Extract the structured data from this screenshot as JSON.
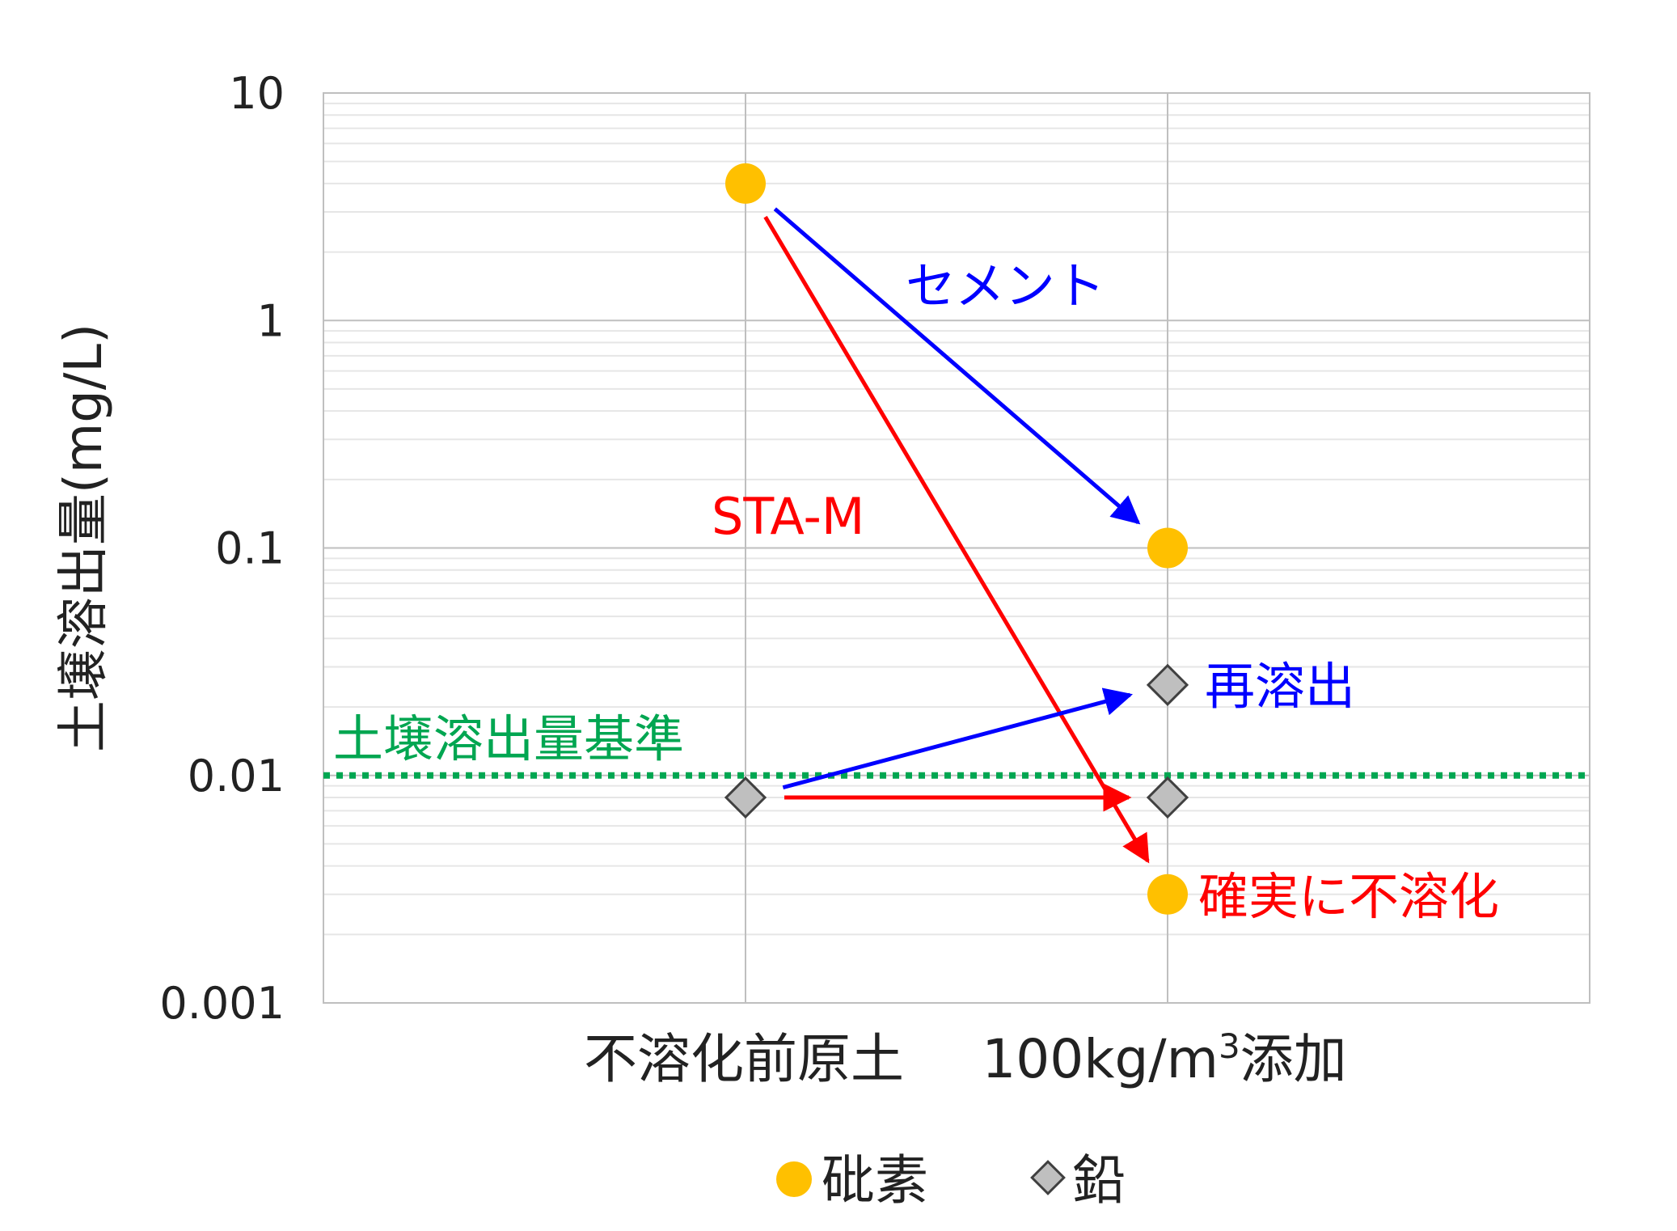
{
  "chart_data": {
    "type": "scatter",
    "yscale": "log",
    "ylim": [
      0.001,
      10
    ],
    "ylabel": "土壌溶出量(mg/L)",
    "yticks": [
      "10",
      "1",
      "0.1",
      "0.01",
      "0.001"
    ],
    "categories": [
      "不溶化前原土",
      "100kg/m³添加"
    ],
    "category_labels": {
      "before": "不溶化前原土",
      "after_prefix": "100kg/m",
      "after_sup": "3",
      "after_suffix": "添加"
    },
    "grid": true,
    "series": [
      {
        "name": "砒素",
        "marker": "circle",
        "color": "#FFC000",
        "points": [
          {
            "x": "不溶化前原土",
            "y": 4.0
          },
          {
            "x": "100kg/m³添加",
            "y": 0.1
          },
          {
            "x": "100kg/m³添加",
            "y": 0.003
          }
        ]
      },
      {
        "name": "鉛",
        "marker": "diamond",
        "color": "#BFBFBF",
        "points": [
          {
            "x": "不溶化前原土",
            "y": 0.008
          },
          {
            "x": "100kg/m³添加",
            "y": 0.025
          },
          {
            "x": "100kg/m³添加",
            "y": 0.008
          }
        ]
      }
    ],
    "reference_line": {
      "label": "土壌溶出量基準",
      "value": 0.01,
      "color": "#00A651"
    },
    "annotations": [
      {
        "text": "セメント",
        "color": "#0000FF"
      },
      {
        "text": "STA-M",
        "color": "#FF0000"
      },
      {
        "text": "再溶出",
        "color": "#0000FF"
      },
      {
        "text": "確実に不溶化",
        "color": "#FF0000"
      }
    ],
    "arrows": [
      {
        "from": [
          "不溶化前原土",
          4.0
        ],
        "to": [
          "100kg/m³添加",
          0.1
        ],
        "color": "#0000FF"
      },
      {
        "from": [
          "不溶化前原土",
          4.0
        ],
        "to": [
          "100kg/m³添加",
          0.003
        ],
        "color": "#FF0000"
      },
      {
        "from": [
          "不溶化前原土",
          0.008
        ],
        "to": [
          "100kg/m³添加",
          0.025
        ],
        "color": "#0000FF"
      },
      {
        "from": [
          "不溶化前原土",
          0.008
        ],
        "to": [
          "100kg/m³添加",
          0.008
        ],
        "color": "#FF0000"
      }
    ],
    "legend": {
      "position": "bottom",
      "entries": [
        "砒素",
        "鉛"
      ]
    }
  }
}
